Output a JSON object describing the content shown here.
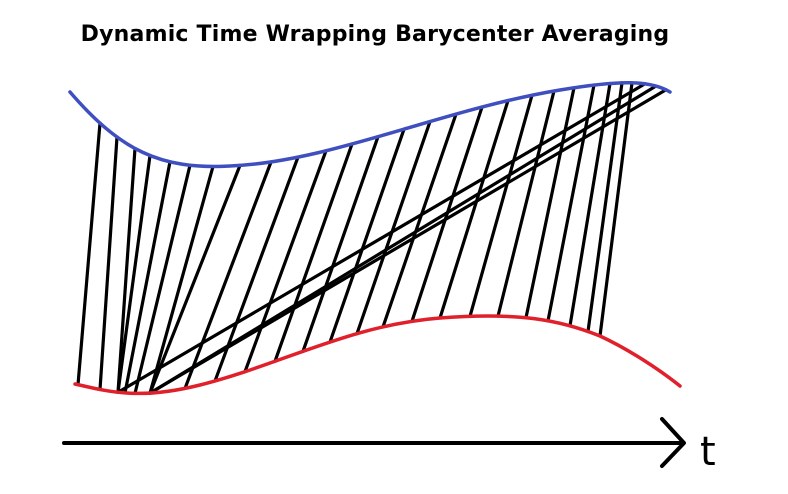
{
  "title": "Dynamic Time Wrapping Barycenter Averaging",
  "axis": {
    "label": "t"
  },
  "colors": {
    "upper_series": "#3f4fc0",
    "lower_series": "#e0202a",
    "alignment_lines": "#000000",
    "axis": "#000000",
    "background": "#ffffff"
  },
  "series": [
    {
      "role": "upper",
      "color_key": "upper_series"
    },
    {
      "role": "lower",
      "color_key": "lower_series"
    }
  ],
  "alignment": {
    "description_count": 29
  }
}
